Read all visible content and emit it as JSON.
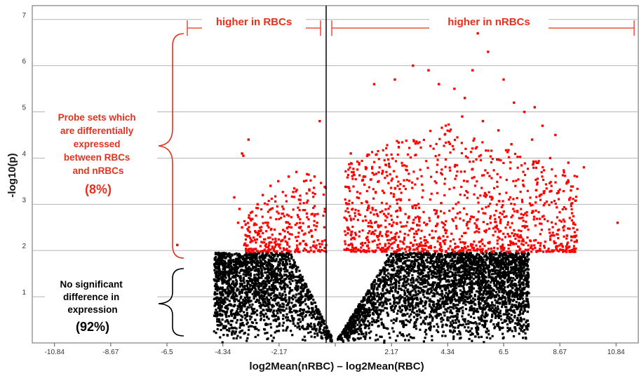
{
  "chart_data": {
    "type": "scatter",
    "title": "",
    "xlabel": "log2Mean(nRBC) – log2Mean(RBC)",
    "ylabel": "-log10(p)",
    "xlim": [
      -11.7,
      11.7
    ],
    "ylim": [
      0,
      7.3
    ],
    "x_ticks": [
      "-10.84",
      "-8.67",
      "-6.5",
      "-4.34",
      "-2.17",
      "",
      "2.17",
      "4.34",
      "6.5",
      "8.67",
      "10.84"
    ],
    "x_tick_values": [
      -10.84,
      -8.67,
      -6.5,
      -4.34,
      -2.17,
      0,
      2.17,
      4.34,
      6.5,
      8.67,
      10.84
    ],
    "y_ticks": [
      "1",
      "2",
      "3",
      "4",
      "5",
      "6",
      "7"
    ],
    "y_tick_values": [
      1,
      2,
      3,
      4,
      5,
      6,
      7
    ],
    "grid": "horizontal",
    "significance_threshold": 1.95,
    "colors": {
      "significant": "#ff0000",
      "not_significant": "#000000",
      "annotation": "#e8301c",
      "grid": "#b5b5b5"
    },
    "series": [
      {
        "color": "#ff0000",
        "points": [
          [
            -6.1,
            2.12
          ],
          [
            -3.6,
            4.1
          ],
          [
            -3.55,
            4.05
          ],
          [
            -3.35,
            4.4
          ],
          [
            -0.6,
            4.8
          ],
          [
            -3.9,
            3.15
          ],
          [
            -3.7,
            2.9
          ],
          [
            -3.75,
            2.6
          ],
          [
            -3.6,
            2.5
          ],
          [
            -3.3,
            2.4
          ],
          [
            -3.0,
            3.0
          ],
          [
            -2.8,
            3.2
          ],
          [
            -2.5,
            3.4
          ],
          [
            -2.2,
            3.5
          ],
          [
            -1.8,
            3.6
          ],
          [
            -1.5,
            3.7
          ],
          [
            -1.2,
            3.5
          ],
          [
            -1.0,
            3.3
          ],
          [
            -0.8,
            3.6
          ],
          [
            -2.9,
            2.3
          ],
          [
            -2.6,
            2.6
          ],
          [
            -2.3,
            2.2
          ],
          [
            -2.0,
            2.9
          ],
          [
            -1.7,
            2.5
          ],
          [
            -1.4,
            3.1
          ],
          [
            -1.1,
            2.8
          ],
          [
            -0.9,
            2.3
          ],
          [
            -0.7,
            2.6
          ],
          [
            -0.5,
            2.2
          ],
          [
            -0.4,
            2.9
          ],
          [
            0.6,
            4.1
          ],
          [
            1.5,
            5.6
          ],
          [
            2.3,
            5.7
          ],
          [
            3.0,
            6.0
          ],
          [
            3.6,
            5.9
          ],
          [
            4.0,
            5.6
          ],
          [
            4.6,
            5.5
          ],
          [
            5.0,
            5.3
          ],
          [
            5.3,
            5.9
          ],
          [
            5.5,
            6.7
          ],
          [
            5.9,
            6.3
          ],
          [
            6.5,
            5.7
          ],
          [
            6.9,
            5.2
          ],
          [
            7.3,
            5.0
          ],
          [
            7.7,
            5.1
          ],
          [
            8.0,
            4.7
          ],
          [
            8.5,
            4.5
          ],
          [
            8.3,
            4.0
          ],
          [
            9.0,
            3.9
          ],
          [
            9.6,
            3.8
          ],
          [
            9.1,
            3.3
          ],
          [
            8.9,
            2.9
          ],
          [
            8.8,
            2.5
          ],
          [
            9.2,
            2.6
          ],
          [
            10.9,
            2.6
          ],
          [
            7.6,
            4.4
          ],
          [
            6.8,
            4.3
          ],
          [
            6.3,
            4.6
          ],
          [
            5.7,
            4.8
          ],
          [
            4.9,
            4.9
          ]
        ]
      },
      {
        "color": "#000000",
        "points": [
          [
            -4.5,
            1.95
          ],
          [
            -3.8,
            1.6
          ],
          [
            -3.2,
            1.3
          ],
          [
            -2.6,
            0.9
          ],
          [
            -1.9,
            0.55
          ],
          [
            -1.2,
            0.3
          ],
          [
            -0.5,
            0.1
          ],
          [
            0.3,
            0.05
          ],
          [
            1.0,
            0.25
          ],
          [
            1.8,
            0.4
          ],
          [
            2.7,
            0.6
          ],
          [
            3.7,
            0.9
          ],
          [
            4.6,
            1.2
          ],
          [
            5.5,
            1.5
          ],
          [
            6.5,
            1.7
          ],
          [
            7.2,
            1.95
          ],
          [
            -2.0,
            1.9
          ],
          [
            2.0,
            1.9
          ],
          [
            4.0,
            1.8
          ],
          [
            -1.0,
            1.0
          ],
          [
            1.5,
            1.0
          ],
          [
            3.0,
            1.4
          ],
          [
            -3.0,
            1.7
          ],
          [
            6.0,
            1.85
          ]
        ]
      }
    ]
  },
  "annotations": {
    "higher_rbc": "higher in RBCs",
    "higher_nrbc": "higher in nRBCs",
    "de_lines": [
      "Probe sets which",
      "are differentially",
      "expressed",
      "between RBCs",
      "and nRBCs"
    ],
    "de_pct": "(8%)",
    "ns_lines": [
      "No significant",
      "difference in",
      "expression"
    ],
    "ns_pct": "(92%)"
  }
}
